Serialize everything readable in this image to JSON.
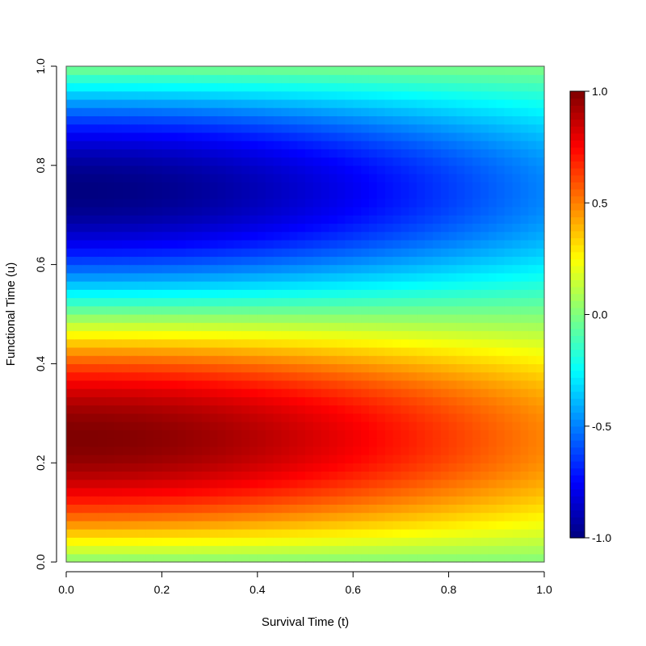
{
  "chart_data": {
    "type": "heatmap",
    "title": "",
    "xlabel": "Survival Time (t)",
    "ylabel": "Functional Time (u)",
    "xlim": [
      0,
      1
    ],
    "ylim": [
      0,
      1
    ],
    "xticks": [
      "0.0",
      "0.2",
      "0.4",
      "0.6",
      "0.8",
      "1.0"
    ],
    "yticks": [
      "0.0",
      "0.2",
      "0.4",
      "0.6",
      "0.8",
      "1.0"
    ],
    "colorbar": {
      "range": [
        -1,
        1
      ],
      "ticks": [
        "-1.0",
        "-0.5",
        "0.0",
        "0.5",
        "1.0"
      ],
      "colormap": "jet",
      "colors": [
        "#00007F",
        "#0000FF",
        "#007FFF",
        "#00FFFF",
        "#7FFF7F",
        "#FFFF00",
        "#FF7F00",
        "#FF0000",
        "#7F0000"
      ]
    },
    "surface": {
      "formula": "sin(2*pi*u) * exp(-t^2 / 1.4)",
      "grid_x": 60,
      "grid_y": 60,
      "max_at": [
        0.0,
        0.25
      ],
      "min_at": [
        0.0,
        0.75
      ],
      "max_value": 1.0,
      "min_value": -1.0
    },
    "grid": false,
    "legend": "colorbar-right"
  }
}
